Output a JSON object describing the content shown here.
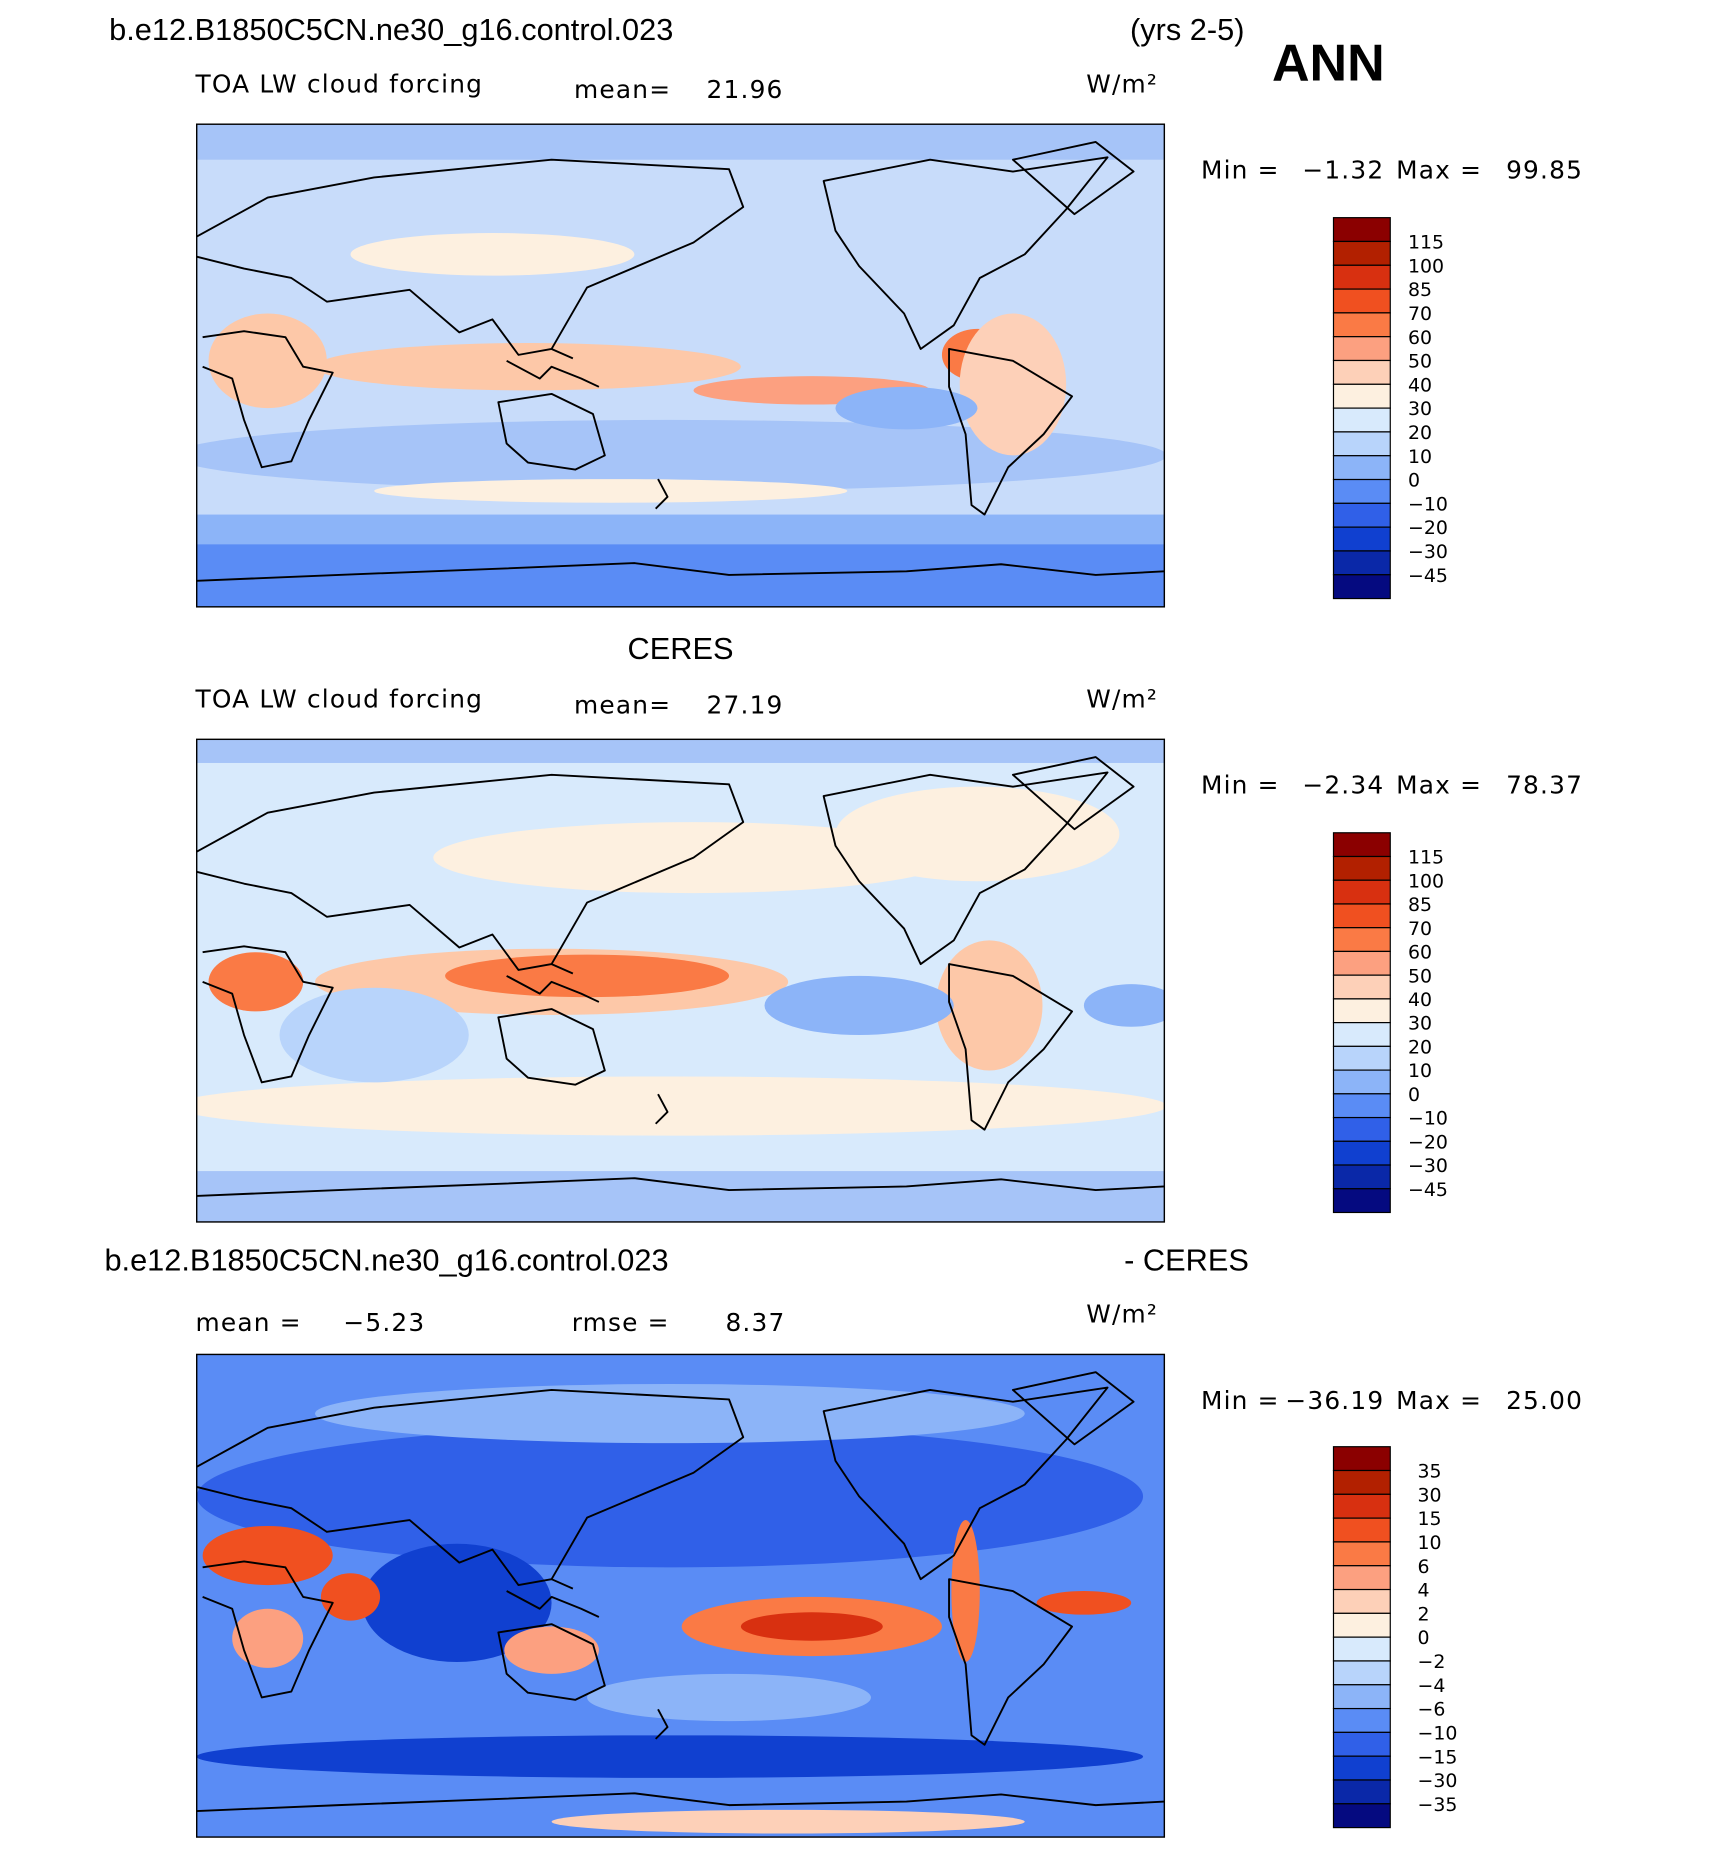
{
  "header": {
    "case": "b.e12.B1850C5CN.ne30_g16.control.023",
    "years": "(yrs 2-5)",
    "season": "ANN"
  },
  "panels": [
    {
      "variable": "TOA LW cloud forcing",
      "mean_label": "mean=",
      "mean": "21.96",
      "units": "W/m²",
      "min_label": "Min =",
      "min": "−1.32",
      "max_label": "Max =",
      "max": "99.85",
      "colorbar": [
        "115",
        "100",
        "85",
        "70",
        "60",
        "50",
        "40",
        "30",
        "20",
        "10",
        "0",
        "−10",
        "−20",
        "−30",
        "−45"
      ]
    },
    {
      "heading": "CERES",
      "variable": "TOA LW cloud forcing",
      "mean_label": "mean=",
      "mean": "27.19",
      "units": "W/m²",
      "min_label": "Min =",
      "min": "−2.34",
      "max_label": "Max =",
      "max": "78.37",
      "colorbar": [
        "115",
        "100",
        "85",
        "70",
        "60",
        "50",
        "40",
        "30",
        "20",
        "10",
        "0",
        "−10",
        "−20",
        "−30",
        "−45"
      ]
    },
    {
      "heading": "b.e12.B1850C5CN.ne30_g16.control.023",
      "heading_right": "- CERES",
      "mean_label": "mean =",
      "mean": "−5.23",
      "rmse_label": "rmse =",
      "rmse": "8.37",
      "units": "W/m²",
      "min_label": "Min =",
      "min": "−36.19",
      "max_label": "Max =",
      "max": "25.00",
      "colorbar": [
        "35",
        "30",
        "15",
        "10",
        "6",
        "4",
        "2",
        "0",
        "−2",
        "−4",
        "−6",
        "−10",
        "−15",
        "−30",
        "−35"
      ]
    }
  ]
}
